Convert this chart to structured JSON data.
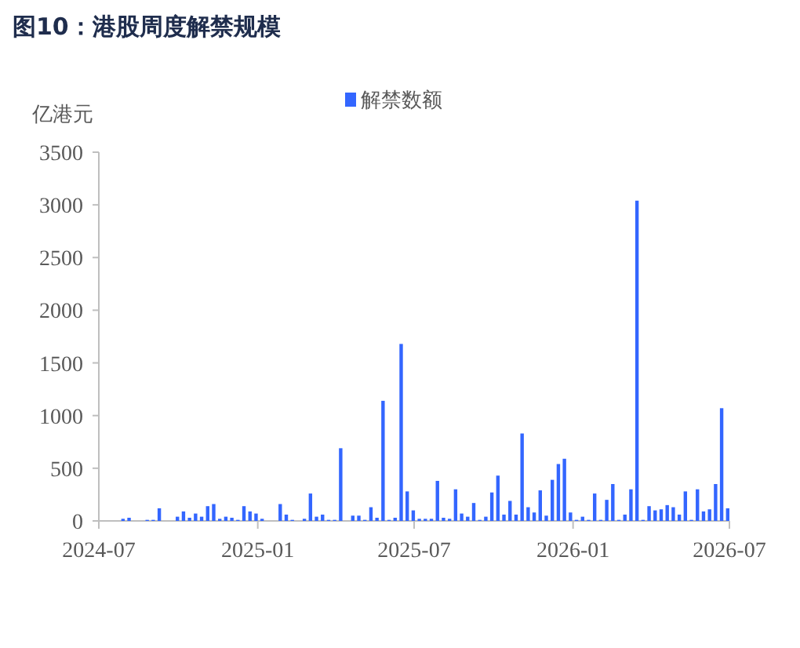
{
  "chart_data": {
    "type": "bar",
    "title": "图10：港股周度解禁规模",
    "ylabel": "亿港元",
    "x": [
      "2024-07-29",
      "2024-08-05",
      "2024-08-12",
      "2024-08-19",
      "2024-08-26",
      "2024-09-02",
      "2024-09-09",
      "2024-09-16",
      "2024-09-23",
      "2024-09-30",
      "2024-10-07",
      "2024-10-14",
      "2024-10-21",
      "2024-10-28",
      "2024-11-04",
      "2024-11-11",
      "2024-11-18",
      "2024-11-25",
      "2024-12-02",
      "2024-12-09",
      "2024-12-16",
      "2024-12-23",
      "2024-12-30",
      "2025-01-06",
      "2025-01-13",
      "2025-01-20",
      "2025-01-27",
      "2025-02-03",
      "2025-02-10",
      "2025-02-17",
      "2025-02-24",
      "2025-03-03",
      "2025-03-10",
      "2025-03-17",
      "2025-03-24",
      "2025-03-31",
      "2025-04-07",
      "2025-04-14",
      "2025-04-21",
      "2025-04-28",
      "2025-05-05",
      "2025-05-12",
      "2025-05-19",
      "2025-05-26",
      "2025-06-02",
      "2025-06-09",
      "2025-06-16",
      "2025-06-23",
      "2025-06-30",
      "2025-07-07",
      "2025-07-14",
      "2025-07-21",
      "2025-07-28",
      "2025-08-04",
      "2025-08-11",
      "2025-08-18",
      "2025-08-25",
      "2025-09-01",
      "2025-09-08",
      "2025-09-15",
      "2025-09-22",
      "2025-09-29",
      "2025-10-06",
      "2025-10-13",
      "2025-10-20",
      "2025-10-27",
      "2025-11-03",
      "2025-11-10",
      "2025-11-17",
      "2025-11-24",
      "2025-12-01",
      "2025-12-08",
      "2025-12-15",
      "2025-12-22",
      "2025-12-29",
      "2026-01-05",
      "2026-01-12",
      "2026-01-19",
      "2026-01-26",
      "2026-02-02",
      "2026-02-09",
      "2026-02-16",
      "2026-02-23",
      "2026-03-02",
      "2026-03-09",
      "2026-03-16",
      "2026-03-23",
      "2026-03-30",
      "2026-04-06",
      "2026-04-13",
      "2026-04-20",
      "2026-04-27",
      "2026-05-04",
      "2026-05-11",
      "2026-05-18",
      "2026-05-25",
      "2026-06-01",
      "2026-06-08",
      "2026-06-15",
      "2026-06-22",
      "2026-06-29"
    ],
    "series": [
      {
        "name": "解禁数额",
        "color": "#3366ff",
        "values": [
          20,
          30,
          0,
          0,
          10,
          10,
          120,
          0,
          0,
          40,
          90,
          30,
          70,
          40,
          140,
          160,
          20,
          40,
          30,
          10,
          140,
          90,
          70,
          20,
          0,
          0,
          160,
          60,
          10,
          0,
          20,
          260,
          40,
          60,
          10,
          10,
          690,
          0,
          50,
          50,
          10,
          130,
          30,
          1140,
          10,
          30,
          1680,
          280,
          100,
          20,
          20,
          20,
          380,
          30,
          20,
          300,
          70,
          40,
          170,
          10,
          40,
          270,
          430,
          60,
          190,
          60,
          830,
          130,
          80,
          290,
          50,
          390,
          540,
          590,
          80,
          10,
          40,
          10,
          260,
          10,
          200,
          350,
          10,
          60,
          300,
          3040,
          10,
          140,
          100,
          110,
          150,
          130,
          60,
          280,
          10,
          300,
          90,
          110,
          350,
          1070,
          120
        ]
      }
    ],
    "xlim": [
      "2024-07",
      "2026-07"
    ],
    "xticks": [
      "2024-07",
      "2025-01",
      "2025-07",
      "2026-01",
      "2026-07"
    ],
    "ylim": [
      0,
      3500
    ],
    "yticks": [
      0,
      500,
      1000,
      1500,
      2000,
      2500,
      3000,
      3500
    ],
    "grid": false,
    "legend": "top"
  }
}
